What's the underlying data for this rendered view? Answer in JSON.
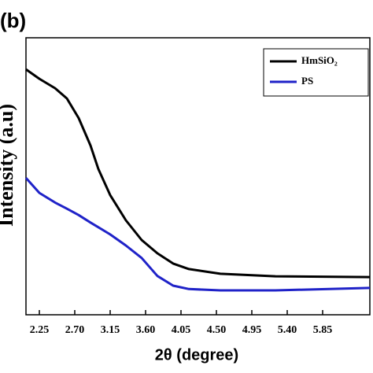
{
  "chart_data": {
    "type": "line",
    "panel_label": "(b)",
    "x_label": "2θ (degree)",
    "y_label": "Intensity (a.u)",
    "x": [
      2.08,
      2.25,
      2.45,
      2.6,
      2.75,
      2.9,
      3.0,
      3.15,
      3.35,
      3.55,
      3.75,
      3.95,
      4.15,
      4.55,
      5.25,
      6.45
    ],
    "series": [
      {
        "name": "HmSiO₂",
        "color": "#000000",
        "values": [
          88.6,
          85.2,
          81.8,
          78.1,
          71.0,
          61.1,
          52.6,
          43.2,
          34.1,
          27.0,
          22.2,
          18.5,
          16.5,
          14.8,
          13.9,
          13.6
        ]
      },
      {
        "name": "PS",
        "color": "#1f22c8",
        "values": [
          49.4,
          44.0,
          40.5,
          38.3,
          36.0,
          33.3,
          31.6,
          29.0,
          25.0,
          20.5,
          14.0,
          10.5,
          9.3,
          8.8,
          8.8,
          9.7
        ]
      }
    ],
    "xlim": [
      2.08,
      6.45
    ],
    "ylim": [
      0,
      100
    ],
    "xticks": [
      {
        "value": 2.25,
        "label": "2.25"
      },
      {
        "value": 2.7,
        "label": "2.70"
      },
      {
        "value": 3.15,
        "label": "3.15"
      },
      {
        "value": 3.6,
        "label": "3.60"
      },
      {
        "value": 4.05,
        "label": "4.05"
      },
      {
        "value": 4.5,
        "label": "4.50"
      },
      {
        "value": 4.95,
        "label": "4.95"
      },
      {
        "value": 5.4,
        "label": "5.40"
      },
      {
        "value": 5.85,
        "label": "5.85"
      }
    ],
    "legend": "upper right",
    "grid": false
  }
}
